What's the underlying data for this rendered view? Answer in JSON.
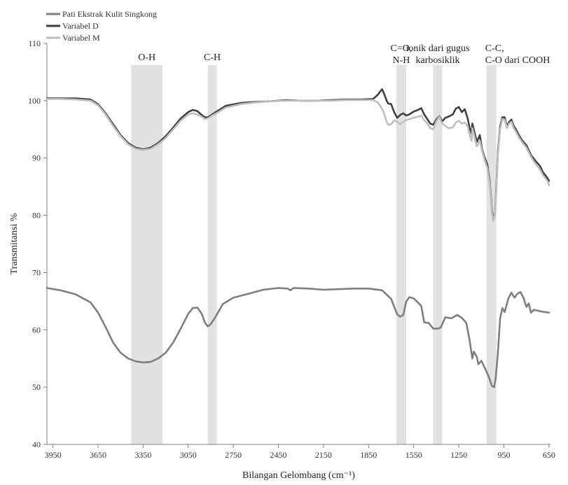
{
  "chart_data": {
    "type": "line",
    "title": "",
    "xlabel": "Bilangan Gelombang (cm⁻¹)",
    "ylabel": "Transmitansi %",
    "xlim": [
      3990,
      640
    ],
    "ylim": [
      40,
      110
    ],
    "x_ticks": [
      3950,
      3650,
      3350,
      3050,
      2750,
      2450,
      2150,
      1850,
      1550,
      1250,
      950,
      650
    ],
    "y_ticks": [
      40,
      50,
      60,
      70,
      80,
      90,
      100,
      110
    ],
    "grid": false,
    "legend_position": "top-left",
    "bands": [
      {
        "label": "O-H",
        "from": 3430,
        "to": 3220
      },
      {
        "label": "C-H",
        "from": 2920,
        "to": 2860
      },
      {
        "label": "C=O,\nN-H",
        "from": 1665,
        "to": 1600
      },
      {
        "label": "ionik dari gugus\nkarbosiklik",
        "from": 1420,
        "to": 1360
      },
      {
        "label": "C-C,\nC-O dari COOH",
        "from": 1065,
        "to": 1000
      }
    ],
    "series": [
      {
        "name": "Pati Ekstrak Kulit Singkong",
        "color": "#7f7f7f",
        "points": [
          [
            3990,
            67.3
          ],
          [
            3900,
            66.9
          ],
          [
            3800,
            66.2
          ],
          [
            3700,
            64.8
          ],
          [
            3650,
            63.0
          ],
          [
            3600,
            60.5
          ],
          [
            3550,
            57.8
          ],
          [
            3500,
            56.0
          ],
          [
            3450,
            55.0
          ],
          [
            3400,
            54.5
          ],
          [
            3350,
            54.3
          ],
          [
            3300,
            54.4
          ],
          [
            3250,
            55.0
          ],
          [
            3200,
            56.0
          ],
          [
            3150,
            57.8
          ],
          [
            3100,
            60.2
          ],
          [
            3050,
            62.8
          ],
          [
            3020,
            63.8
          ],
          [
            2990,
            63.9
          ],
          [
            2960,
            62.8
          ],
          [
            2940,
            61.3
          ],
          [
            2920,
            60.6
          ],
          [
            2900,
            61.0
          ],
          [
            2870,
            62.2
          ],
          [
            2820,
            64.5
          ],
          [
            2750,
            65.6
          ],
          [
            2650,
            66.3
          ],
          [
            2550,
            67.0
          ],
          [
            2450,
            67.3
          ],
          [
            2390,
            67.2
          ],
          [
            2370,
            66.9
          ],
          [
            2350,
            67.3
          ],
          [
            2250,
            67.2
          ],
          [
            2150,
            67.0
          ],
          [
            2050,
            67.1
          ],
          [
            1950,
            67.2
          ],
          [
            1850,
            67.2
          ],
          [
            1760,
            66.9
          ],
          [
            1700,
            65.4
          ],
          [
            1660,
            62.7
          ],
          [
            1640,
            62.3
          ],
          [
            1620,
            62.6
          ],
          [
            1600,
            64.9
          ],
          [
            1580,
            65.7
          ],
          [
            1550,
            65.5
          ],
          [
            1500,
            64.2
          ],
          [
            1480,
            61.3
          ],
          [
            1450,
            61.2
          ],
          [
            1420,
            60.2
          ],
          [
            1390,
            60.2
          ],
          [
            1370,
            60.4
          ],
          [
            1340,
            62.2
          ],
          [
            1300,
            62.0
          ],
          [
            1260,
            62.6
          ],
          [
            1230,
            62.1
          ],
          [
            1200,
            61.2
          ],
          [
            1180,
            58.5
          ],
          [
            1160,
            55.0
          ],
          [
            1150,
            56.2
          ],
          [
            1130,
            55.3
          ],
          [
            1120,
            54.0
          ],
          [
            1100,
            54.6
          ],
          [
            1080,
            53.5
          ],
          [
            1050,
            51.8
          ],
          [
            1030,
            50.2
          ],
          [
            1015,
            50.0
          ],
          [
            1005,
            51.5
          ],
          [
            990,
            56.0
          ],
          [
            975,
            62.0
          ],
          [
            960,
            63.8
          ],
          [
            945,
            63.1
          ],
          [
            920,
            65.5
          ],
          [
            900,
            66.5
          ],
          [
            880,
            65.6
          ],
          [
            860,
            66.3
          ],
          [
            840,
            66.6
          ],
          [
            820,
            65.6
          ],
          [
            800,
            64.0
          ],
          [
            785,
            64.6
          ],
          [
            770,
            63.0
          ],
          [
            750,
            63.5
          ],
          [
            700,
            63.2
          ],
          [
            650,
            63.0
          ]
        ]
      },
      {
        "name": "Variabel D",
        "color": "#404040",
        "points": [
          [
            3990,
            100.4
          ],
          [
            3900,
            100.4
          ],
          [
            3800,
            100.4
          ],
          [
            3700,
            100.2
          ],
          [
            3650,
            99.4
          ],
          [
            3600,
            97.8
          ],
          [
            3550,
            95.9
          ],
          [
            3500,
            94.0
          ],
          [
            3450,
            92.6
          ],
          [
            3400,
            91.8
          ],
          [
            3350,
            91.5
          ],
          [
            3300,
            91.8
          ],
          [
            3250,
            92.6
          ],
          [
            3200,
            93.8
          ],
          [
            3150,
            95.3
          ],
          [
            3100,
            96.9
          ],
          [
            3050,
            98.0
          ],
          [
            3020,
            98.4
          ],
          [
            2990,
            98.2
          ],
          [
            2960,
            97.5
          ],
          [
            2940,
            97.1
          ],
          [
            2920,
            97.1
          ],
          [
            2890,
            97.6
          ],
          [
            2850,
            98.3
          ],
          [
            2800,
            99.1
          ],
          [
            2700,
            99.6
          ],
          [
            2600,
            99.8
          ],
          [
            2500,
            99.9
          ],
          [
            2400,
            100.1
          ],
          [
            2300,
            100.0
          ],
          [
            2200,
            100.0
          ],
          [
            2100,
            100.1
          ],
          [
            2000,
            100.2
          ],
          [
            1900,
            100.2
          ],
          [
            1820,
            100.3
          ],
          [
            1790,
            101.0
          ],
          [
            1770,
            101.7
          ],
          [
            1760,
            102.0
          ],
          [
            1750,
            101.4
          ],
          [
            1730,
            100.0
          ],
          [
            1720,
            99.5
          ],
          [
            1700,
            99.4
          ],
          [
            1680,
            98.0
          ],
          [
            1660,
            97.0
          ],
          [
            1640,
            97.5
          ],
          [
            1620,
            97.8
          ],
          [
            1600,
            97.4
          ],
          [
            1580,
            97.6
          ],
          [
            1550,
            98.1
          ],
          [
            1520,
            98.4
          ],
          [
            1500,
            98.7
          ],
          [
            1480,
            97.6
          ],
          [
            1460,
            96.8
          ],
          [
            1440,
            96.0
          ],
          [
            1420,
            95.8
          ],
          [
            1400,
            96.7
          ],
          [
            1380,
            97.3
          ],
          [
            1360,
            96.4
          ],
          [
            1340,
            97.0
          ],
          [
            1320,
            97.2
          ],
          [
            1290,
            97.6
          ],
          [
            1270,
            98.6
          ],
          [
            1250,
            98.9
          ],
          [
            1230,
            98.0
          ],
          [
            1210,
            98.5
          ],
          [
            1190,
            96.8
          ],
          [
            1180,
            95.5
          ],
          [
            1165,
            94.2
          ],
          [
            1160,
            96.0
          ],
          [
            1150,
            95.0
          ],
          [
            1130,
            92.8
          ],
          [
            1110,
            94.0
          ],
          [
            1095,
            91.5
          ],
          [
            1080,
            90.2
          ],
          [
            1060,
            88.8
          ],
          [
            1045,
            86.0
          ],
          [
            1030,
            81.0
          ],
          [
            1020,
            79.2
          ],
          [
            1010,
            80.2
          ],
          [
            1000,
            85.0
          ],
          [
            990,
            91.0
          ],
          [
            975,
            95.5
          ],
          [
            960,
            97.1
          ],
          [
            945,
            97.1
          ],
          [
            930,
            95.5
          ],
          [
            915,
            96.3
          ],
          [
            900,
            96.7
          ],
          [
            885,
            95.6
          ],
          [
            870,
            95.0
          ],
          [
            850,
            94.0
          ],
          [
            830,
            93.1
          ],
          [
            800,
            92.2
          ],
          [
            770,
            90.5
          ],
          [
            740,
            89.5
          ],
          [
            710,
            88.6
          ],
          [
            690,
            87.5
          ],
          [
            660,
            86.5
          ],
          [
            650,
            86.0
          ]
        ]
      },
      {
        "name": "Variabel M",
        "color": "#bfbfbf",
        "points": [
          [
            3990,
            100.3
          ],
          [
            3900,
            100.3
          ],
          [
            3800,
            100.2
          ],
          [
            3700,
            100.0
          ],
          [
            3650,
            99.2
          ],
          [
            3600,
            97.6
          ],
          [
            3550,
            95.6
          ],
          [
            3500,
            93.8
          ],
          [
            3450,
            92.4
          ],
          [
            3400,
            91.6
          ],
          [
            3350,
            91.4
          ],
          [
            3300,
            91.6
          ],
          [
            3250,
            92.4
          ],
          [
            3200,
            93.5
          ],
          [
            3150,
            95.0
          ],
          [
            3100,
            96.5
          ],
          [
            3050,
            97.6
          ],
          [
            3020,
            97.8
          ],
          [
            2990,
            97.6
          ],
          [
            2960,
            97.2
          ],
          [
            2940,
            96.8
          ],
          [
            2920,
            96.9
          ],
          [
            2890,
            97.4
          ],
          [
            2850,
            98.0
          ],
          [
            2800,
            98.8
          ],
          [
            2700,
            99.4
          ],
          [
            2600,
            99.7
          ],
          [
            2500,
            99.9
          ],
          [
            2400,
            100.0
          ],
          [
            2300,
            100.0
          ],
          [
            2200,
            100.0
          ],
          [
            2100,
            100.0
          ],
          [
            2000,
            100.1
          ],
          [
            1900,
            100.1
          ],
          [
            1820,
            100.1
          ],
          [
            1790,
            99.7
          ],
          [
            1770,
            99.0
          ],
          [
            1750,
            98.0
          ],
          [
            1730,
            96.3
          ],
          [
            1720,
            95.8
          ],
          [
            1700,
            95.9
          ],
          [
            1680,
            96.6
          ],
          [
            1660,
            96.3
          ],
          [
            1640,
            95.9
          ],
          [
            1620,
            96.3
          ],
          [
            1600,
            96.6
          ],
          [
            1580,
            96.8
          ],
          [
            1550,
            97.0
          ],
          [
            1520,
            97.2
          ],
          [
            1500,
            97.4
          ],
          [
            1480,
            96.6
          ],
          [
            1460,
            96.0
          ],
          [
            1440,
            95.2
          ],
          [
            1420,
            95.0
          ],
          [
            1400,
            96.4
          ],
          [
            1380,
            97.2
          ],
          [
            1360,
            96.0
          ],
          [
            1340,
            95.6
          ],
          [
            1320,
            95.2
          ],
          [
            1290,
            95.3
          ],
          [
            1270,
            96.2
          ],
          [
            1250,
            96.5
          ],
          [
            1230,
            96.0
          ],
          [
            1210,
            96.2
          ],
          [
            1190,
            95.5
          ],
          [
            1180,
            94.2
          ],
          [
            1165,
            93.0
          ],
          [
            1160,
            95.2
          ],
          [
            1150,
            94.2
          ],
          [
            1130,
            92.0
          ],
          [
            1110,
            93.0
          ],
          [
            1095,
            91.2
          ],
          [
            1080,
            89.8
          ],
          [
            1060,
            88.2
          ],
          [
            1045,
            85.5
          ],
          [
            1030,
            80.5
          ],
          [
            1020,
            79.0
          ],
          [
            1010,
            80.0
          ],
          [
            1000,
            84.5
          ],
          [
            990,
            90.5
          ],
          [
            975,
            95.0
          ],
          [
            960,
            96.8
          ],
          [
            945,
            96.7
          ],
          [
            930,
            95.2
          ],
          [
            915,
            96.0
          ],
          [
            900,
            96.3
          ],
          [
            885,
            95.2
          ],
          [
            870,
            94.6
          ],
          [
            850,
            93.6
          ],
          [
            830,
            92.8
          ],
          [
            800,
            91.8
          ],
          [
            770,
            90.2
          ],
          [
            740,
            89.0
          ],
          [
            710,
            88.0
          ],
          [
            690,
            87.0
          ],
          [
            660,
            86.0
          ],
          [
            650,
            85.2
          ]
        ]
      }
    ]
  }
}
